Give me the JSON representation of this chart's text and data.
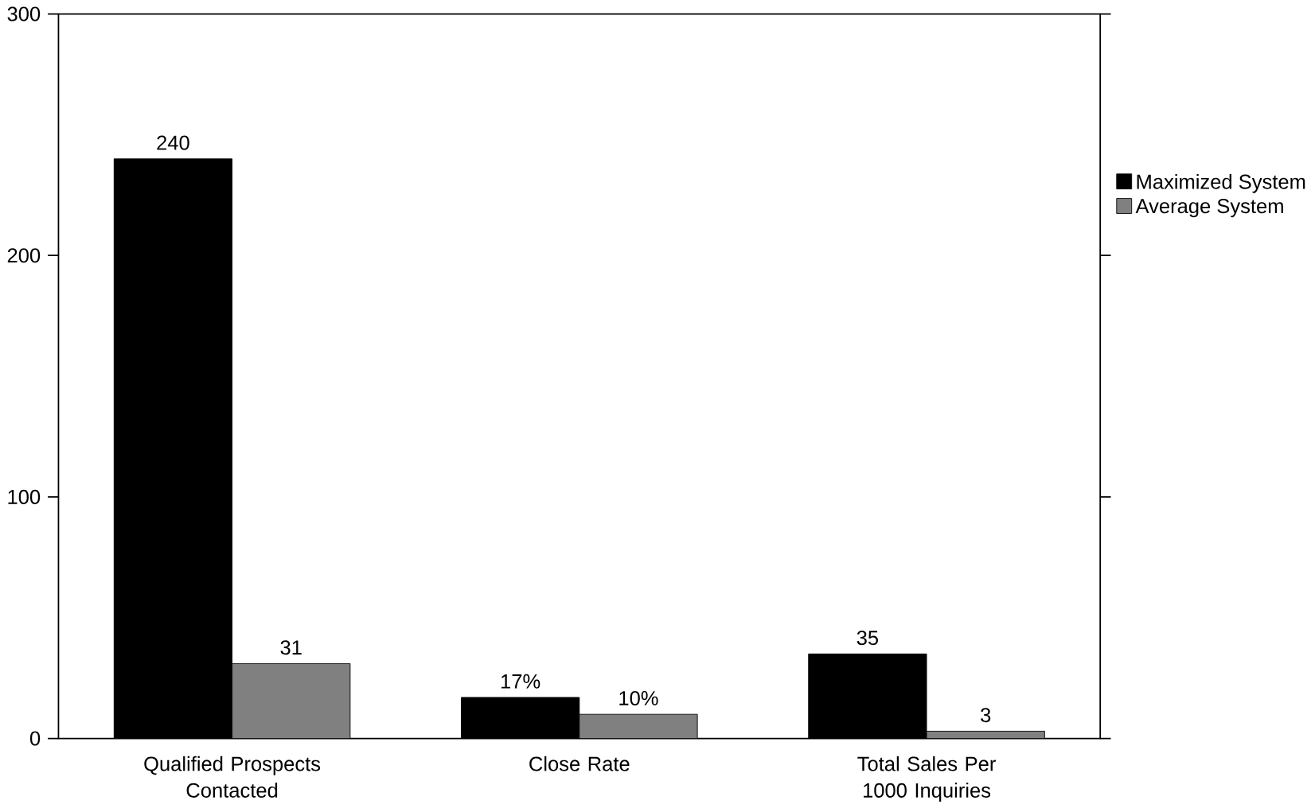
{
  "chart_data": {
    "type": "bar",
    "categories": [
      "Qualified Prospects Contacted",
      "Close Rate",
      "Total Sales Per 1000 Inquiries"
    ],
    "series": [
      {
        "name": "Maximized System",
        "color": "#000000",
        "values": [
          240,
          17,
          35
        ],
        "value_labels": [
          "240",
          "17%",
          "35"
        ]
      },
      {
        "name": "Average System",
        "color": "#808080",
        "values": [
          31,
          10,
          3
        ],
        "value_labels": [
          "31",
          "10%",
          "3"
        ]
      }
    ],
    "ylim": [
      0,
      300
    ],
    "yticks": [
      0,
      100,
      200,
      300
    ],
    "grid": false,
    "legend": "right"
  }
}
